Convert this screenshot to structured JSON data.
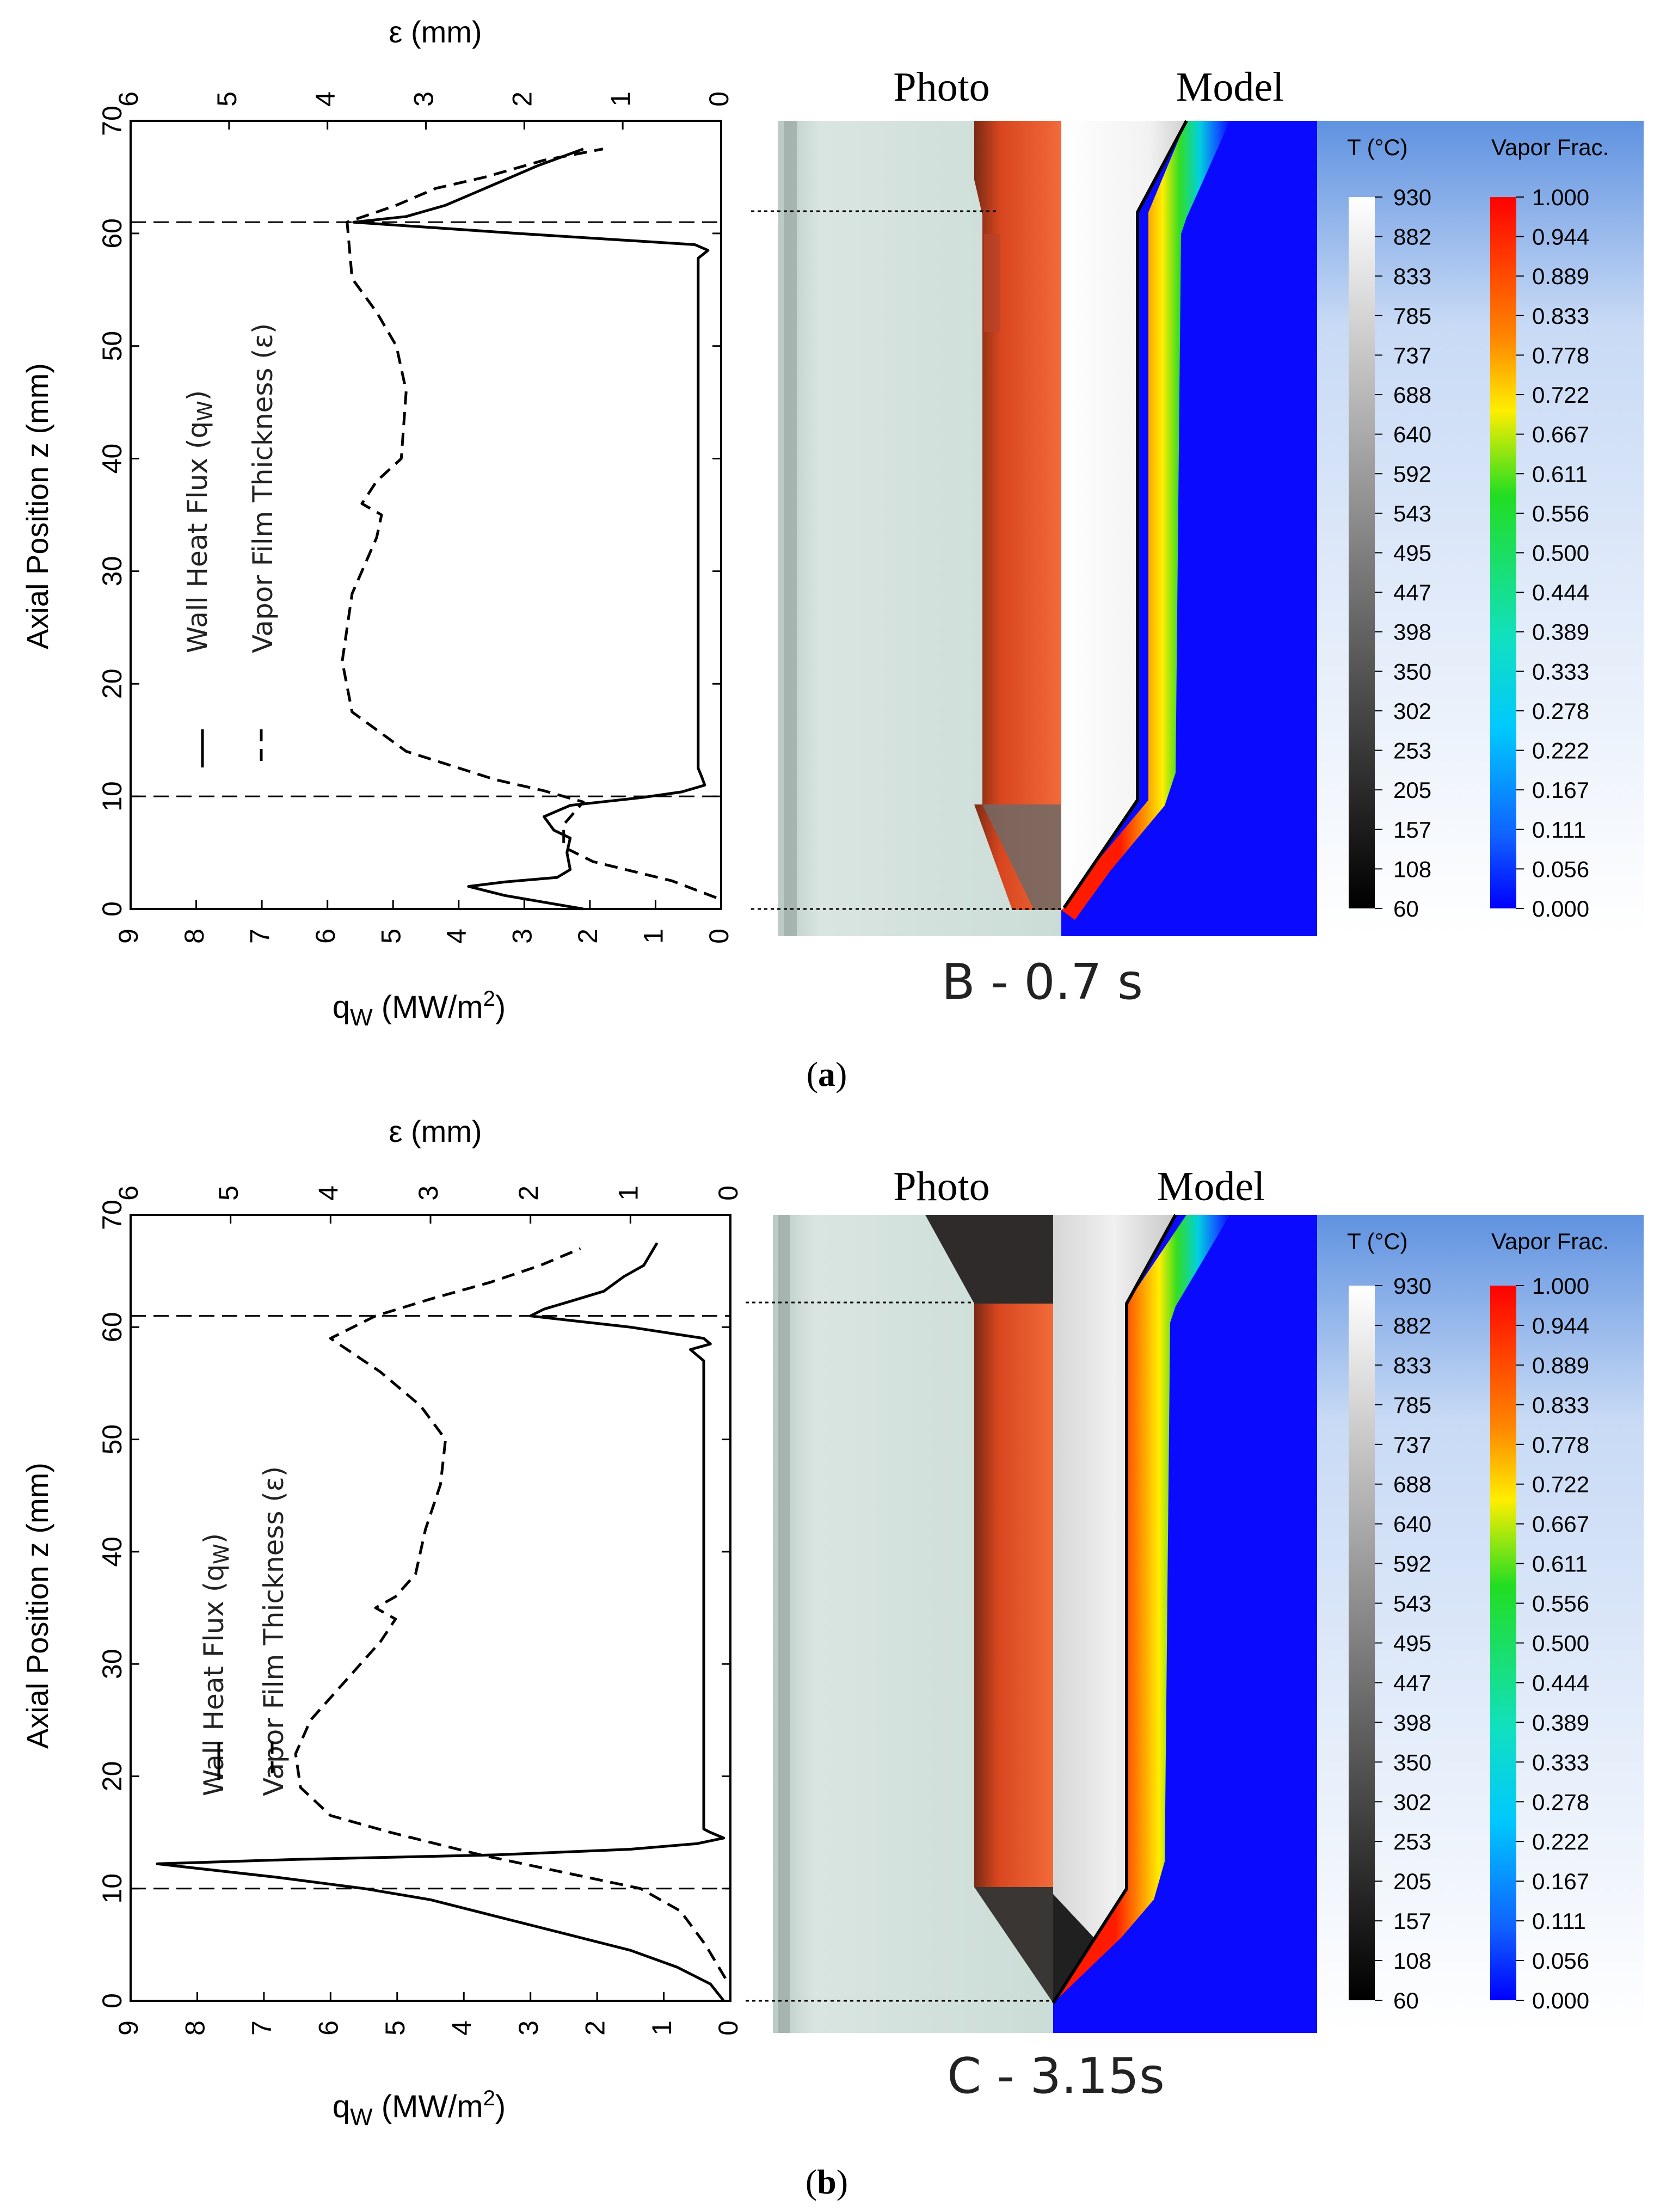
{
  "colors": {
    "vapor_0": "#0a0aff",
    "vapor_mid": "#22dd22",
    "vapor_1": "#ff1a00",
    "legend_bg": "#6fa0e6",
    "rod": "#e8552a",
    "water": "#cfded9"
  },
  "panels": [
    {
      "label": "a",
      "time_label": "B - 0.7 s",
      "photo_label": "Photo",
      "model_label": "Model"
    },
    {
      "label": "b",
      "time_label": "C - 3.15s",
      "photo_label": "Photo",
      "model_label": "Model"
    }
  ],
  "legend": {
    "temp_title": "T (°C)",
    "vapor_title": "Vapor Frac.",
    "temp_ticks": [
      "930",
      "882",
      "833",
      "785",
      "737",
      "688",
      "640",
      "592",
      "543",
      "495",
      "447",
      "398",
      "350",
      "302",
      "253",
      "205",
      "157",
      "108",
      "60"
    ],
    "vapor_ticks": [
      "1.000",
      "0.944",
      "0.889",
      "0.833",
      "0.778",
      "0.722",
      "0.667",
      "0.611",
      "0.556",
      "0.500",
      "0.444",
      "0.389",
      "0.333",
      "0.278",
      "0.222",
      "0.167",
      "0.111",
      "0.056",
      "0.000"
    ]
  },
  "chart_data": [
    {
      "type": "line",
      "panel": "a",
      "xlabel": "q_W (MW/m2)",
      "xlabel_top": "ε (mm)",
      "ylabel": "Axial Position  z (mm)",
      "xlim_bottom": [
        9,
        0
      ],
      "xlim_top": [
        6,
        0
      ],
      "ylim": [
        0,
        70
      ],
      "x_ticks_bottom": [
        "9",
        "8",
        "7",
        "6",
        "5",
        "4",
        "3",
        "2",
        "1",
        "0"
      ],
      "x_ticks_top": [
        "6",
        "5",
        "4",
        "3",
        "2",
        "1",
        "0"
      ],
      "y_ticks": [
        "0",
        "10",
        "20",
        "30",
        "40",
        "50",
        "60",
        "70"
      ],
      "legend": [
        "Wall Heat Flux (q_W)",
        "Vapor Film Thickness (ε)"
      ],
      "hlines": [
        10,
        61
      ],
      "series": [
        {
          "name": "Wall Heat Flux (q_W)",
          "axis": "bottom",
          "style": "solid",
          "points": [
            [
              2.1,
              0
            ],
            [
              3.3,
              1.2
            ],
            [
              3.85,
              2
            ],
            [
              3.3,
              2.4
            ],
            [
              2.5,
              2.8
            ],
            [
              2.3,
              3.5
            ],
            [
              2.35,
              5
            ],
            [
              2.3,
              6.3
            ],
            [
              2.55,
              7
            ],
            [
              2.7,
              8.2
            ],
            [
              2.3,
              9.2
            ],
            [
              1.2,
              9.9
            ],
            [
              0.6,
              10.4
            ],
            [
              0.25,
              11
            ],
            [
              0.3,
              11.8
            ],
            [
              0.35,
              12.5
            ],
            [
              0.35,
              20
            ],
            [
              0.35,
              40
            ],
            [
              0.35,
              57
            ],
            [
              0.35,
              57.8
            ],
            [
              0.2,
              58.5
            ],
            [
              0.4,
              59
            ],
            [
              3.1,
              60
            ],
            [
              5.6,
              61
            ],
            [
              4.8,
              61.5
            ],
            [
              4.2,
              62.5
            ],
            [
              3.8,
              63.5
            ],
            [
              3.2,
              65
            ],
            [
              2.8,
              66
            ],
            [
              2.1,
              67.5
            ]
          ]
        },
        {
          "name": "Vapor Film Thickness (ε)",
          "axis": "top",
          "style": "dashed",
          "points": [
            [
              0.05,
              1
            ],
            [
              0.5,
              2.5
            ],
            [
              1.3,
              4.2
            ],
            [
              1.6,
              5.5
            ],
            [
              1.6,
              7.5
            ],
            [
              1.4,
              9.5
            ],
            [
              1.8,
              10.5
            ],
            [
              2.3,
              11.5
            ],
            [
              3.2,
              14
            ],
            [
              3.75,
              17.5
            ],
            [
              3.85,
              22
            ],
            [
              3.75,
              28
            ],
            [
              3.5,
              33
            ],
            [
              3.45,
              35
            ],
            [
              3.65,
              36
            ],
            [
              3.5,
              38
            ],
            [
              3.25,
              40
            ],
            [
              3.2,
              46
            ],
            [
              3.3,
              50
            ],
            [
              3.5,
              53
            ],
            [
              3.75,
              56
            ],
            [
              3.8,
              61
            ],
            [
              3.3,
              62.5
            ],
            [
              2.9,
              64
            ],
            [
              2.4,
              65
            ],
            [
              1.8,
              66.5
            ],
            [
              1.2,
              67.5
            ]
          ]
        }
      ]
    },
    {
      "type": "line",
      "panel": "b",
      "xlabel": "q_W (MW/m2)",
      "xlabel_top": "ε (mm)",
      "ylabel": "Axial Position  z (mm)",
      "xlim_bottom": [
        9,
        0
      ],
      "xlim_top": [
        6,
        0
      ],
      "ylim": [
        0,
        70
      ],
      "x_ticks_bottom": [
        "9",
        "8",
        "7",
        "6",
        "5",
        "4",
        "3",
        "2",
        "1",
        "0"
      ],
      "x_ticks_top": [
        "6",
        "5",
        "4",
        "3",
        "2",
        "1",
        "0"
      ],
      "y_ticks": [
        "0",
        "10",
        "20",
        "30",
        "40",
        "50",
        "60",
        "70"
      ],
      "legend": [
        "Wall Heat Flux (q_W)",
        "Vapor Film Thickness (ε)"
      ],
      "hlines": [
        10,
        61
      ],
      "series": [
        {
          "name": "Wall Heat Flux (q_W)",
          "axis": "bottom",
          "style": "solid",
          "points": [
            [
              0.1,
              0
            ],
            [
              0.3,
              1.5
            ],
            [
              0.8,
              3
            ],
            [
              1.5,
              4.5
            ],
            [
              2.5,
              6
            ],
            [
              3.5,
              7.5
            ],
            [
              4.5,
              9
            ],
            [
              5.5,
              10
            ],
            [
              6.8,
              11
            ],
            [
              8.0,
              11.8
            ],
            [
              8.6,
              12.2
            ],
            [
              6.5,
              12.6
            ],
            [
              3.5,
              13
            ],
            [
              1.5,
              13.5
            ],
            [
              0.5,
              14
            ],
            [
              0.1,
              14.5
            ],
            [
              0.3,
              15
            ],
            [
              0.4,
              15.3
            ],
            [
              0.4,
              20
            ],
            [
              0.4,
              40
            ],
            [
              0.4,
              57
            ],
            [
              0.6,
              58
            ],
            [
              0.3,
              58.5
            ],
            [
              0.4,
              59
            ],
            [
              1.5,
              60
            ],
            [
              3.0,
              61
            ],
            [
              2.8,
              61.6
            ],
            [
              2.4,
              62.3
            ],
            [
              1.9,
              63.2
            ],
            [
              1.6,
              64.5
            ],
            [
              1.3,
              65.5
            ],
            [
              1.1,
              67.5
            ]
          ]
        },
        {
          "name": "Vapor Film Thickness (ε)",
          "axis": "top",
          "style": "dashed",
          "points": [
            [
              0.05,
              2
            ],
            [
              0.25,
              5
            ],
            [
              0.5,
              8
            ],
            [
              0.9,
              10
            ],
            [
              1.7,
              11.5
            ],
            [
              2.5,
              13
            ],
            [
              3.4,
              15
            ],
            [
              4.0,
              16.5
            ],
            [
              4.3,
              19
            ],
            [
              4.35,
              22
            ],
            [
              4.2,
              25
            ],
            [
              3.9,
              28
            ],
            [
              3.5,
              32
            ],
            [
              3.35,
              34
            ],
            [
              3.55,
              35
            ],
            [
              3.35,
              36
            ],
            [
              3.15,
              38
            ],
            [
              3.05,
              42
            ],
            [
              2.9,
              46
            ],
            [
              2.85,
              50
            ],
            [
              3.1,
              53
            ],
            [
              3.5,
              56
            ],
            [
              4.0,
              59
            ],
            [
              3.55,
              61
            ],
            [
              3.0,
              62.5
            ],
            [
              2.4,
              64
            ],
            [
              1.9,
              65.5
            ],
            [
              1.5,
              67
            ]
          ]
        }
      ]
    }
  ]
}
